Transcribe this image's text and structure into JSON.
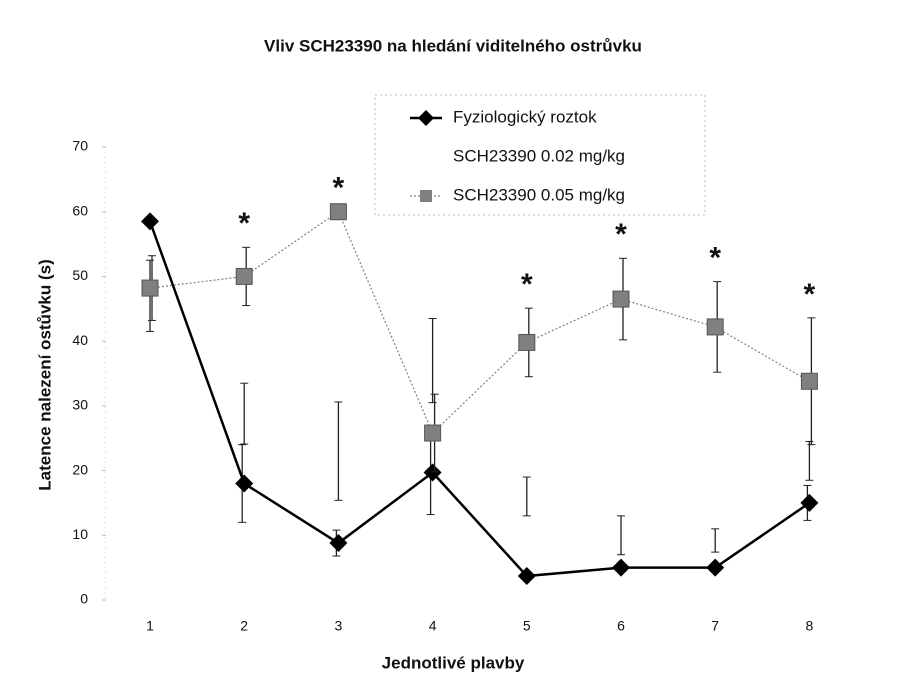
{
  "chart_data": {
    "type": "line",
    "title": "Vliv SCH23390 na hledání viditelného ostrůvku",
    "x_label": "Jednotlivé plavby",
    "y_label": "Latence nalezení ostůvku (s)",
    "categories": [
      "1",
      "2",
      "3",
      "4",
      "5",
      "6",
      "7",
      "8"
    ],
    "series": [
      {
        "name": "Fyziologický roztok",
        "color": "#000000",
        "marker": "diamond",
        "line": "solid",
        "values": [
          58.5,
          18,
          8.8,
          19.7,
          3.7,
          5,
          5,
          15
        ],
        "errors": [
          0,
          6,
          2,
          6.5,
          0,
          0,
          0,
          2.7
        ]
      },
      {
        "name": "SCH23390 0.02 mg/kg",
        "color": "#000000",
        "marker": "none",
        "line": "none",
        "values": [
          47,
          28.8,
          23,
          37,
          16,
          10,
          9.2,
          21.5
        ],
        "errors": [
          5.5,
          4.7,
          7.6,
          6.5,
          3,
          3,
          1.8,
          3
        ]
      },
      {
        "name": "SCH23390 0.05 mg/kg",
        "color": "#808080",
        "marker": "square",
        "line": "dotted",
        "values": [
          48.2,
          50,
          60,
          25.8,
          39.8,
          46.5,
          42.2,
          33.8
        ],
        "errors": [
          5,
          4.5,
          0,
          6,
          5.3,
          6.3,
          7,
          9.8
        ]
      }
    ],
    "annotations": [
      {
        "category": "2",
        "text": "*"
      },
      {
        "category": "3",
        "text": "*"
      },
      {
        "category": "5",
        "text": "*"
      },
      {
        "category": "6",
        "text": "*"
      },
      {
        "category": "7",
        "text": "*"
      },
      {
        "category": "8",
        "text": "*"
      }
    ],
    "ylim": [
      0,
      70
    ],
    "yticks": [
      0,
      10,
      20,
      30,
      40,
      50,
      60,
      70
    ],
    "grid": false,
    "legend": "top-right"
  }
}
